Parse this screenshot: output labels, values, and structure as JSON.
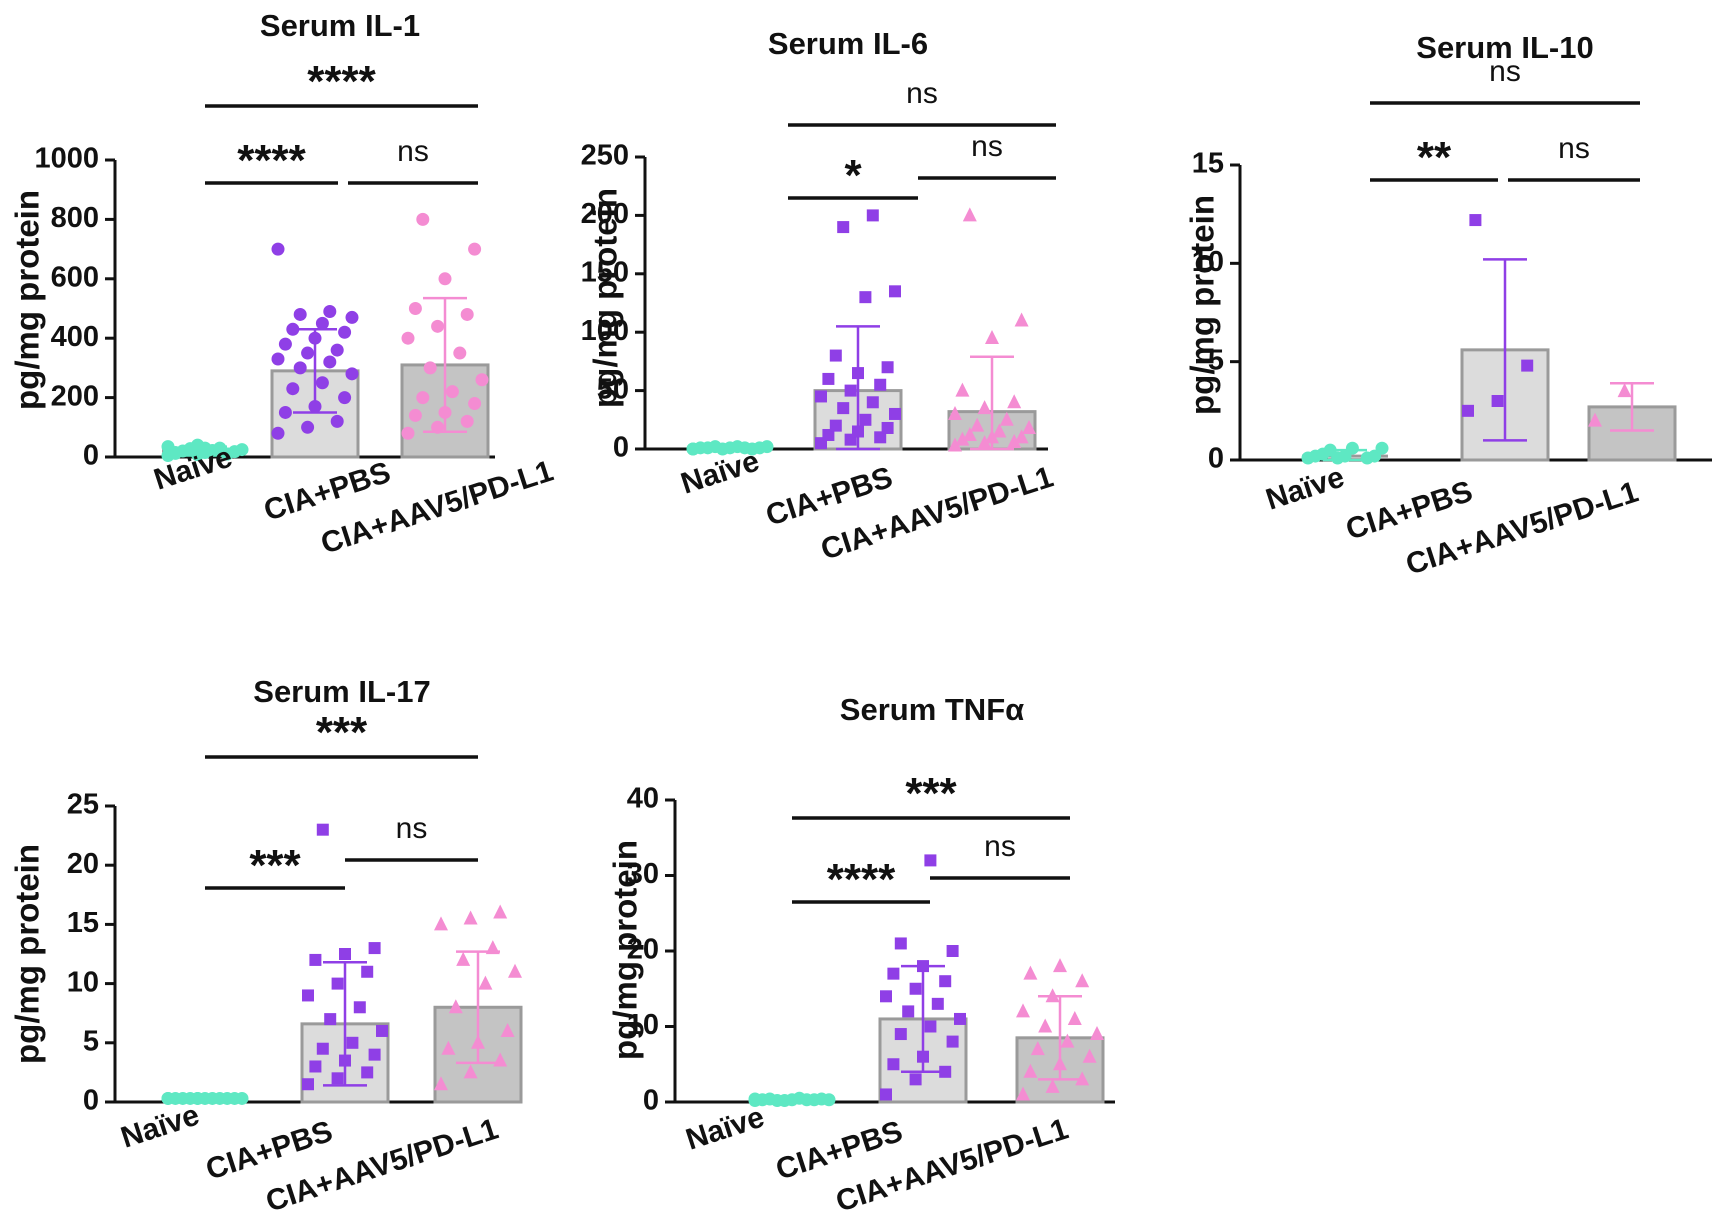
{
  "figure": {
    "y_axis_label": "pg/mg protein",
    "groups": [
      "Naïve",
      "CIA+PBS",
      "CIA+AAV5/PD-L1"
    ],
    "colors": {
      "naive": "#5ee8c3",
      "cia_pbs": "#8f3fe6",
      "cia_aav": "#f48cd2",
      "bar_light": "#dcdcdc",
      "bar_dark": "#c4c4c4",
      "bar_edge": "#9a9a9a",
      "axis": "#111111"
    }
  },
  "chart_data": [
    {
      "type": "bar",
      "title": "Serum IL-1",
      "ylabel": "pg/mg protein",
      "categories": [
        "Naïve",
        "CIA+PBS",
        "CIA+AAV5/PD-L1"
      ],
      "ylim": [
        0,
        1000
      ],
      "yticks": [
        "0",
        "200",
        "400",
        "600",
        "800",
        "1000"
      ],
      "means": [
        20,
        290,
        310
      ],
      "sd": [
        15,
        140,
        225
      ],
      "markers": [
        "circle",
        "circle",
        "circle"
      ],
      "points": [
        [
          5,
          8,
          10,
          12,
          15,
          18,
          20,
          22,
          25,
          28,
          30,
          35,
          40,
          10,
          15,
          30
        ],
        [
          80,
          100,
          120,
          150,
          170,
          200,
          230,
          250,
          280,
          300,
          320,
          330,
          350,
          360,
          380,
          400,
          420,
          430,
          450,
          470,
          480,
          490,
          700
        ],
        [
          80,
          100,
          120,
          140,
          150,
          180,
          200,
          220,
          260,
          300,
          350,
          400,
          440,
          480,
          500,
          600,
          700,
          800
        ]
      ],
      "significance": [
        {
          "from": 0,
          "to": 2,
          "label": "****"
        },
        {
          "from": 0,
          "to": 1,
          "label": "****"
        },
        {
          "from": 1,
          "to": 2,
          "label": "ns"
        }
      ]
    },
    {
      "type": "bar",
      "title": "Serum IL-6",
      "ylabel": "pg/mg protein",
      "categories": [
        "Naïve",
        "CIA+PBS",
        "CIA+AAV5/PD-L1"
      ],
      "ylim": [
        0,
        250
      ],
      "yticks": [
        "0",
        "50",
        "100",
        "150",
        "200",
        "250"
      ],
      "means": [
        1,
        50,
        32
      ],
      "sd": [
        1,
        55,
        47
      ],
      "markers": [
        "circle",
        "square",
        "triangle"
      ],
      "points": [
        [
          0,
          0,
          0,
          1,
          1,
          1,
          1,
          2,
          2,
          2,
          1,
          0
        ],
        [
          5,
          8,
          10,
          12,
          15,
          18,
          20,
          25,
          30,
          35,
          40,
          45,
          50,
          55,
          60,
          65,
          70,
          80,
          130,
          135,
          190,
          200
        ],
        [
          3,
          5,
          6,
          8,
          10,
          10,
          12,
          15,
          18,
          20,
          25,
          30,
          35,
          40,
          50,
          95,
          110,
          200
        ]
      ],
      "significance": [
        {
          "from": 0,
          "to": 2,
          "label": "ns"
        },
        {
          "from": 0,
          "to": 1,
          "label": "*"
        },
        {
          "from": 1,
          "to": 2,
          "label": "ns"
        }
      ]
    },
    {
      "type": "bar",
      "title": "Serum IL-10",
      "ylabel": "pg/mg protein",
      "categories": [
        "Naïve",
        "CIA+PBS",
        "CIA+AAV5/PD-L1"
      ],
      "ylim": [
        0,
        15
      ],
      "yticks": [
        "0",
        "5",
        "10",
        "15"
      ],
      "means": [
        0.2,
        5.6,
        2.7
      ],
      "sd": [
        0.3,
        4.6,
        1.2
      ],
      "markers": [
        "circle",
        "square",
        "triangle"
      ],
      "points": [
        [
          0.1,
          0.1,
          0.1,
          0.2,
          0.2,
          0.2,
          0.3,
          0.6,
          0.6,
          0.5
        ],
        [
          2.5,
          3.0,
          4.8,
          12.2
        ],
        [
          2.0,
          3.5
        ]
      ],
      "significance": [
        {
          "from": 0,
          "to": 2,
          "label": "ns"
        },
        {
          "from": 0,
          "to": 1,
          "label": "**"
        },
        {
          "from": 1,
          "to": 2,
          "label": "ns"
        }
      ]
    },
    {
      "type": "bar",
      "title": "Serum IL-17",
      "ylabel": "pg/mg protein",
      "categories": [
        "Naïve",
        "CIA+PBS",
        "CIA+AAV5/PD-L1"
      ],
      "ylim": [
        0,
        25
      ],
      "yticks": [
        "0",
        "5",
        "10",
        "15",
        "20",
        "25"
      ],
      "means": [
        0.3,
        6.6,
        8.0
      ],
      "sd": [
        0.1,
        5.2,
        4.7
      ],
      "markers": [
        "circle",
        "square",
        "triangle"
      ],
      "points": [
        [
          0.3,
          0.3,
          0.3,
          0.3,
          0.3,
          0.3,
          0.3,
          0.3,
          0.3,
          0.3,
          0.3,
          0.3,
          0.3
        ],
        [
          1.5,
          2.0,
          2.5,
          3.0,
          3.5,
          4.0,
          4.5,
          5.0,
          6.0,
          7.0,
          8.0,
          9.0,
          10.0,
          11.0,
          12.0,
          12.5,
          13.0,
          23.0
        ],
        [
          1.5,
          2.5,
          3.5,
          4.5,
          5.0,
          6.0,
          8.0,
          10.0,
          11.0,
          12.0,
          13.0,
          15.0,
          15.5,
          16.0
        ]
      ],
      "significance": [
        {
          "from": 0,
          "to": 2,
          "label": "***"
        },
        {
          "from": 0,
          "to": 1,
          "label": "***"
        },
        {
          "from": 1,
          "to": 2,
          "label": "ns"
        }
      ]
    },
    {
      "type": "bar",
      "title": "Serum TNFα",
      "ylabel": "pg/mg protein",
      "categories": [
        "Naïve",
        "CIA+PBS",
        "CIA+AAV5/PD-L1"
      ],
      "ylim": [
        0,
        40
      ],
      "yticks": [
        "0",
        "10",
        "20",
        "30",
        "40"
      ],
      "means": [
        0.3,
        11.0,
        8.5
      ],
      "sd": [
        0.2,
        7.0,
        5.5
      ],
      "markers": [
        "circle",
        "square",
        "triangle"
      ],
      "points": [
        [
          0.2,
          0.2,
          0.3,
          0.3,
          0.3,
          0.4,
          0.4,
          0.5,
          0.3,
          0.2,
          0.3,
          0.4
        ],
        [
          1.0,
          3.0,
          4.0,
          5.0,
          6.0,
          8.0,
          9.0,
          10.0,
          11.0,
          12.0,
          13.0,
          14.0,
          15.0,
          16.0,
          17.0,
          18.0,
          20.0,
          21.0,
          32.0
        ],
        [
          1.0,
          2.0,
          3.0,
          4.0,
          5.0,
          6.0,
          7.0,
          8.0,
          9.0,
          10.0,
          11.0,
          12.0,
          14.0,
          16.0,
          17.0,
          18.0
        ]
      ],
      "significance": [
        {
          "from": 0,
          "to": 2,
          "label": "***"
        },
        {
          "from": 0,
          "to": 1,
          "label": "****"
        },
        {
          "from": 1,
          "to": 2,
          "label": "ns"
        }
      ]
    }
  ]
}
